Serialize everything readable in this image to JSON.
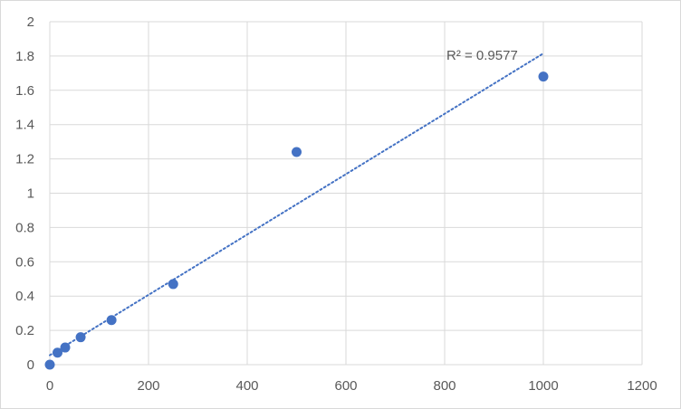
{
  "chart_data": {
    "type": "scatter",
    "title": "",
    "xlabel": "",
    "ylabel": "",
    "xlim": [
      0,
      1200
    ],
    "ylim": [
      0,
      2
    ],
    "x_ticks": [
      0,
      200,
      400,
      600,
      800,
      1000,
      1200
    ],
    "y_ticks": [
      0,
      0.2,
      0.4,
      0.6,
      0.8,
      1,
      1.2,
      1.4,
      1.6,
      1.8,
      2
    ],
    "x_tick_labels": [
      "0",
      "200",
      "400",
      "600",
      "800",
      "1000",
      "1200"
    ],
    "y_tick_labels": [
      "0",
      "0.2",
      "0.4",
      "0.6",
      "0.8",
      "1",
      "1.2",
      "1.4",
      "1.6",
      "1.8",
      "2"
    ],
    "grid": true,
    "legend": "none",
    "series": [
      {
        "x": [
          0,
          15.6,
          31.2,
          62.5,
          125,
          250,
          500,
          1000
        ],
        "y": [
          0.0,
          0.07,
          0.1,
          0.16,
          0.26,
          0.47,
          1.24,
          1.68
        ],
        "color": "#4472C4"
      }
    ],
    "trendline": {
      "type": "linear",
      "x": [
        0,
        1000
      ],
      "y": [
        0.055,
        1.815
      ],
      "style": "dotted",
      "color": "#4472C4",
      "annotation": "R² = 0.9577"
    }
  }
}
